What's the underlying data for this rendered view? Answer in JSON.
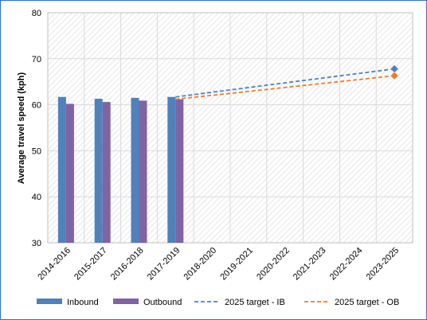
{
  "chart_data": {
    "type": "bar",
    "ylabel": "Average travel speed (kph)",
    "xlabel": "",
    "ylim": [
      30,
      80
    ],
    "yticks": [
      30,
      40,
      50,
      60,
      70,
      80
    ],
    "grid": true,
    "legend_position": "bottom",
    "categories": [
      "2014-2016",
      "2015-2017",
      "2016-2018",
      "2017-2019",
      "2018-2020",
      "2019-2021",
      "2020-2022",
      "2021-2023",
      "2022-2024",
      "2023-2025"
    ],
    "series": [
      {
        "name": "Inbound",
        "kind": "bar",
        "color": "#4f81bd",
        "values": [
          61.7,
          61.3,
          61.5,
          61.7,
          null,
          null,
          null,
          null,
          null,
          null
        ]
      },
      {
        "name": "Outbound",
        "kind": "bar",
        "color": "#8064a2",
        "values": [
          60.2,
          60.6,
          60.9,
          61.2,
          null,
          null,
          null,
          null,
          null,
          null
        ]
      },
      {
        "name": "2025 target - IB",
        "kind": "dashed-line",
        "color": "#4f81bd",
        "values": [
          null,
          null,
          null,
          61.7,
          null,
          null,
          null,
          null,
          null,
          67.8
        ]
      },
      {
        "name": "2025 target - OB",
        "kind": "dashed-line",
        "color": "#ed7d31",
        "values": [
          null,
          null,
          null,
          61.2,
          null,
          null,
          null,
          null,
          null,
          66.3
        ]
      }
    ]
  }
}
